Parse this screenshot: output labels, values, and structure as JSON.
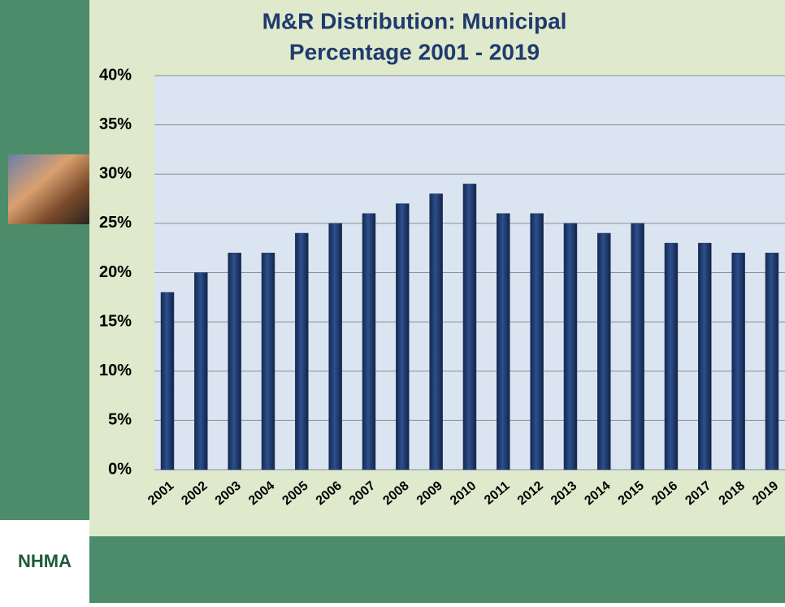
{
  "chart_data": {
    "type": "bar",
    "title": [
      "M&R Distribution: Municipal",
      "Percentage 2001 - 2019"
    ],
    "categories": [
      "2001",
      "2002",
      "2003",
      "2004",
      "2005",
      "2006",
      "2007",
      "2008",
      "2009",
      "2010",
      "2011",
      "2012",
      "2013",
      "2014",
      "2015",
      "2016",
      "2017",
      "2018",
      "2019"
    ],
    "values": [
      18,
      20,
      22,
      22,
      24,
      25,
      26,
      27,
      28,
      29,
      26,
      26,
      25,
      24,
      25,
      23,
      23,
      22,
      22
    ],
    "color": "#1f3a6e",
    "ylim": [
      0,
      40
    ],
    "yticks": [
      {
        "value": 0,
        "label": "0%"
      },
      {
        "value": 5,
        "label": "5%"
      },
      {
        "value": 10,
        "label": "10%"
      },
      {
        "value": 15,
        "label": "15%"
      },
      {
        "value": 20,
        "label": "20%"
      },
      {
        "value": 25,
        "label": "25%"
      },
      {
        "value": 30,
        "label": "30%"
      },
      {
        "value": 35,
        "label": "35%"
      },
      {
        "value": 40,
        "label": "40%"
      }
    ],
    "grid": true
  },
  "logo": {
    "text": "NHMA"
  }
}
